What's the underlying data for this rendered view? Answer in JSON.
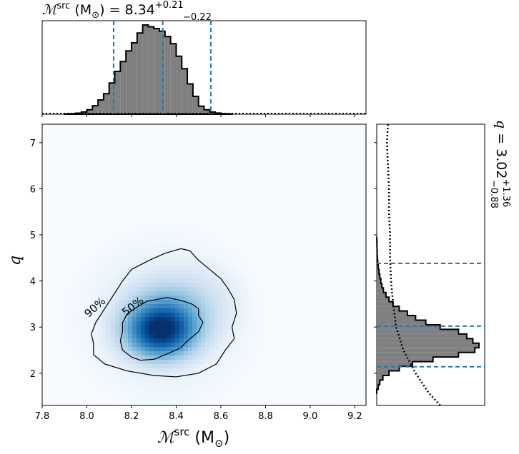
{
  "chart_data": [
    {
      "type": "histogram",
      "panel": "top-marginal",
      "title": {
        "prefix": "ℳ",
        "sup": "src",
        "unit": " (M",
        "unit_sub": "⊙",
        "eq": ") = 8.34",
        "plus": "+0.21",
        "minus": "−0.22"
      },
      "xlim": [
        7.8,
        9.25
      ],
      "bin_edges_start": 7.9,
      "bin_width": 0.025,
      "counts": [
        0.2,
        0.6,
        1.2,
        2.5,
        5,
        9.5,
        16,
        23,
        35,
        48,
        59,
        71,
        80,
        91,
        100,
        98,
        96,
        93,
        87,
        79,
        65,
        51,
        34,
        20,
        9,
        5,
        2.5,
        1.3,
        0.7,
        0.3
      ],
      "prior_dotted": true,
      "quantiles": [
        8.12,
        8.34,
        8.555
      ]
    },
    {
      "type": "heatmap",
      "panel": "joint",
      "xlabel_parts": {
        "main": "ℳ",
        "sup": "src",
        "unit": " (M",
        "unit_sub": "⊙",
        "close": ")"
      },
      "ylabel": "q",
      "xlim": [
        7.8,
        9.25
      ],
      "ylim": [
        1.3,
        7.4
      ],
      "xticks": [
        7.8,
        8.0,
        8.2,
        8.4,
        8.6,
        8.8,
        9.0,
        9.2
      ],
      "yticks": [
        2,
        3,
        4,
        5,
        6,
        7
      ],
      "density_peak": {
        "x": 8.33,
        "y": 2.92
      },
      "contours": [
        {
          "label": "50%",
          "points": [
            [
              8.27,
              3.56
            ],
            [
              8.36,
              3.64
            ],
            [
              8.42,
              3.58
            ],
            [
              8.47,
              3.5
            ],
            [
              8.5,
              3.4
            ],
            [
              8.5,
              3.25
            ],
            [
              8.52,
              3.1
            ],
            [
              8.5,
              2.9
            ],
            [
              8.45,
              2.7
            ],
            [
              8.42,
              2.55
            ],
            [
              8.36,
              2.42
            ],
            [
              8.3,
              2.3
            ],
            [
              8.24,
              2.28
            ],
            [
              8.2,
              2.35
            ],
            [
              8.16,
              2.5
            ],
            [
              8.15,
              2.7
            ],
            [
              8.16,
              2.9
            ],
            [
              8.16,
              3.1
            ],
            [
              8.18,
              3.28
            ],
            [
              8.22,
              3.42
            ]
          ]
        },
        {
          "label": "90%",
          "points": [
            [
              8.16,
              4.0
            ],
            [
              8.2,
              4.25
            ],
            [
              8.28,
              4.45
            ],
            [
              8.35,
              4.6
            ],
            [
              8.42,
              4.7
            ],
            [
              8.46,
              4.66
            ],
            [
              8.5,
              4.45
            ],
            [
              8.55,
              4.25
            ],
            [
              8.6,
              4.05
            ],
            [
              8.63,
              3.85
            ],
            [
              8.66,
              3.6
            ],
            [
              8.67,
              3.3
            ],
            [
              8.65,
              3.0
            ],
            [
              8.66,
              2.75
            ],
            [
              8.62,
              2.5
            ],
            [
              8.58,
              2.2
            ],
            [
              8.5,
              2.0
            ],
            [
              8.4,
              1.92
            ],
            [
              8.3,
              1.95
            ],
            [
              8.18,
              2.05
            ],
            [
              8.08,
              2.2
            ],
            [
              8.03,
              2.4
            ],
            [
              8.03,
              2.65
            ],
            [
              8.02,
              2.85
            ],
            [
              8.04,
              3.1
            ],
            [
              8.08,
              3.4
            ],
            [
              8.12,
              3.7
            ]
          ]
        }
      ]
    },
    {
      "type": "histogram",
      "panel": "right-marginal",
      "orientation": "horizontal",
      "title": {
        "var": "q",
        "eq": " = 3.02",
        "plus": "+1.36",
        "minus": "−0.88"
      },
      "ylim": [
        1.3,
        7.4
      ],
      "bin_edges_start": 1.55,
      "bin_width": 0.1,
      "counts": [
        0,
        1.5,
        3,
        6,
        12,
        22,
        35,
        55,
        80,
        96,
        100,
        94,
        88,
        80,
        62,
        48,
        38,
        30,
        22,
        16,
        12,
        9,
        6.5,
        5,
        4,
        3,
        2.2,
        1.5,
        1,
        0.6,
        0.4,
        0.3,
        0.2,
        0.1
      ],
      "prior_dotted": true,
      "quantiles": [
        2.14,
        3.02,
        4.38
      ]
    }
  ],
  "colors": {
    "hist_fill": "#808080",
    "quantile": "#1f77b4",
    "heat_max": "#08306b"
  }
}
